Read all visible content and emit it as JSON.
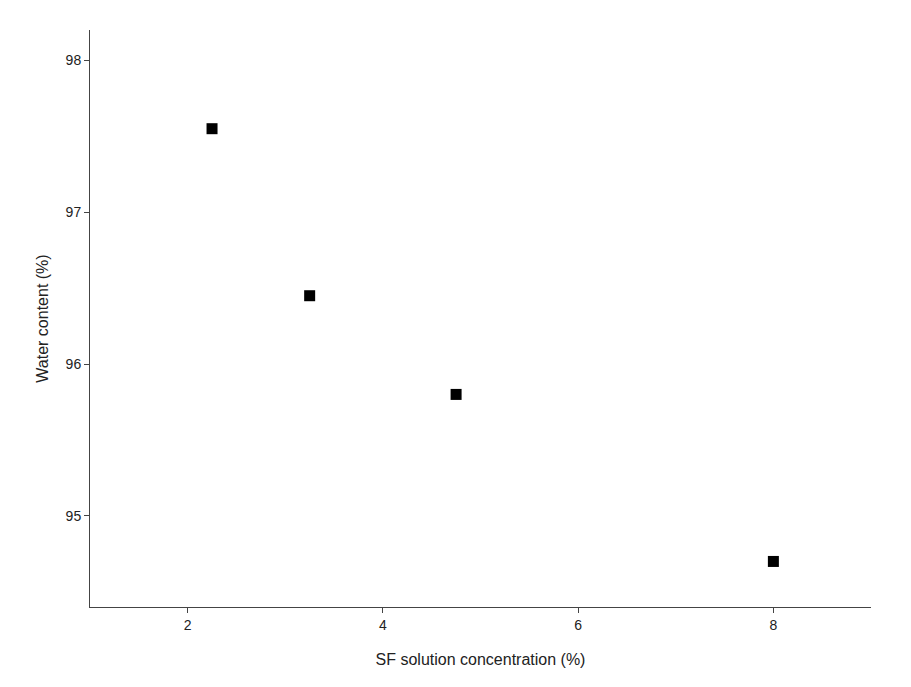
{
  "chart_data": {
    "type": "scatter",
    "x": [
      2.25,
      3.25,
      4.75,
      8.0
    ],
    "y": [
      97.55,
      96.45,
      95.8,
      94.7
    ],
    "xlim": [
      1,
      9
    ],
    "ylim": [
      94.4,
      98.2
    ],
    "xticks": [
      2,
      4,
      6,
      8
    ],
    "yticks": [
      95,
      96,
      97,
      98
    ],
    "xlabel": "SF solution concentration (%)",
    "ylabel": "Water content (%)",
    "marker": "square",
    "color": "black",
    "grid": false
  }
}
